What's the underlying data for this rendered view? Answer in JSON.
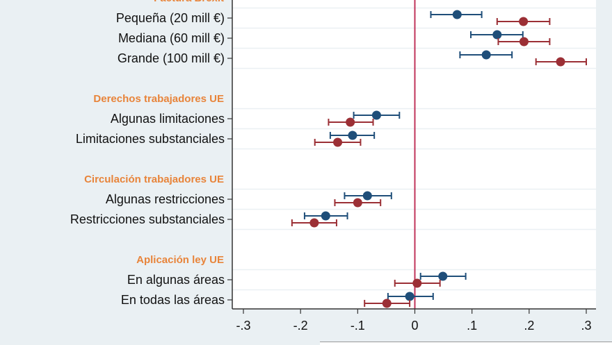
{
  "chart_data": {
    "type": "scatter",
    "subtype": "coefficient-plot",
    "title": "",
    "xlabel": "",
    "ylabel": "",
    "xlim": [
      -0.3,
      0.3
    ],
    "xticks": [
      -0.3,
      -0.2,
      -0.1,
      0,
      0.1,
      0.2,
      0.3
    ],
    "xtick_labels": [
      "-.3",
      "-.2",
      "-.1",
      "0",
      ".1",
      ".2",
      ".3"
    ],
    "reference_line": 0,
    "grid": true,
    "groups": [
      {
        "header": "Factura Brexit",
        "items": [
          {
            "label": "Pequeña (20 mill €)"
          },
          {
            "label": "Mediana (60 mill €)"
          },
          {
            "label": "Grande (100 mill €)"
          }
        ]
      },
      {
        "header": "Derechos trabajadores UE",
        "items": [
          {
            "label": "Algunas limitaciones"
          },
          {
            "label": "Limitaciones substanciales"
          }
        ]
      },
      {
        "header": "Circulación trabajadores UE",
        "items": [
          {
            "label": "Algunas restricciones"
          },
          {
            "label": "Restricciones substanciales"
          }
        ]
      },
      {
        "header": "Aplicación ley UE",
        "items": [
          {
            "label": "En algunas áreas"
          },
          {
            "label": "En todas las áreas"
          }
        ]
      }
    ],
    "series": [
      {
        "name": "Series 1 (blue)",
        "color": "#1f4e79",
        "values": [
          {
            "est": 0.074,
            "lo": 0.028,
            "hi": 0.117
          },
          {
            "est": 0.144,
            "lo": 0.098,
            "hi": 0.189
          },
          {
            "est": 0.125,
            "lo": 0.079,
            "hi": 0.17
          },
          {
            "est": -0.067,
            "lo": -0.107,
            "hi": -0.027
          },
          {
            "est": -0.109,
            "lo": -0.148,
            "hi": -0.071
          },
          {
            "est": -0.083,
            "lo": -0.123,
            "hi": -0.041
          },
          {
            "est": -0.156,
            "lo": -0.193,
            "hi": -0.118
          },
          {
            "est": 0.049,
            "lo": 0.01,
            "hi": 0.089
          },
          {
            "est": -0.009,
            "lo": -0.047,
            "hi": 0.032
          }
        ]
      },
      {
        "name": "Series 2 (red)",
        "color": "#9b2f35",
        "values": [
          {
            "est": 0.19,
            "lo": 0.144,
            "hi": 0.236
          },
          {
            "est": 0.191,
            "lo": 0.146,
            "hi": 0.236
          },
          {
            "est": 0.255,
            "lo": 0.212,
            "hi": 0.3
          },
          {
            "est": -0.113,
            "lo": -0.151,
            "hi": -0.073
          },
          {
            "est": -0.135,
            "lo": -0.175,
            "hi": -0.095
          },
          {
            "est": -0.1,
            "lo": -0.14,
            "hi": -0.06
          },
          {
            "est": -0.176,
            "lo": -0.215,
            "hi": -0.137
          },
          {
            "est": 0.004,
            "lo": -0.035,
            "hi": 0.044
          },
          {
            "est": -0.049,
            "lo": -0.088,
            "hi": -0.009
          }
        ]
      }
    ]
  },
  "colors": {
    "background": "#eaf0f3",
    "plot_background": "#ffffff",
    "gridline": "#eaf0f3",
    "reference_line": "#c0335a",
    "group_header": "#e8843a"
  }
}
